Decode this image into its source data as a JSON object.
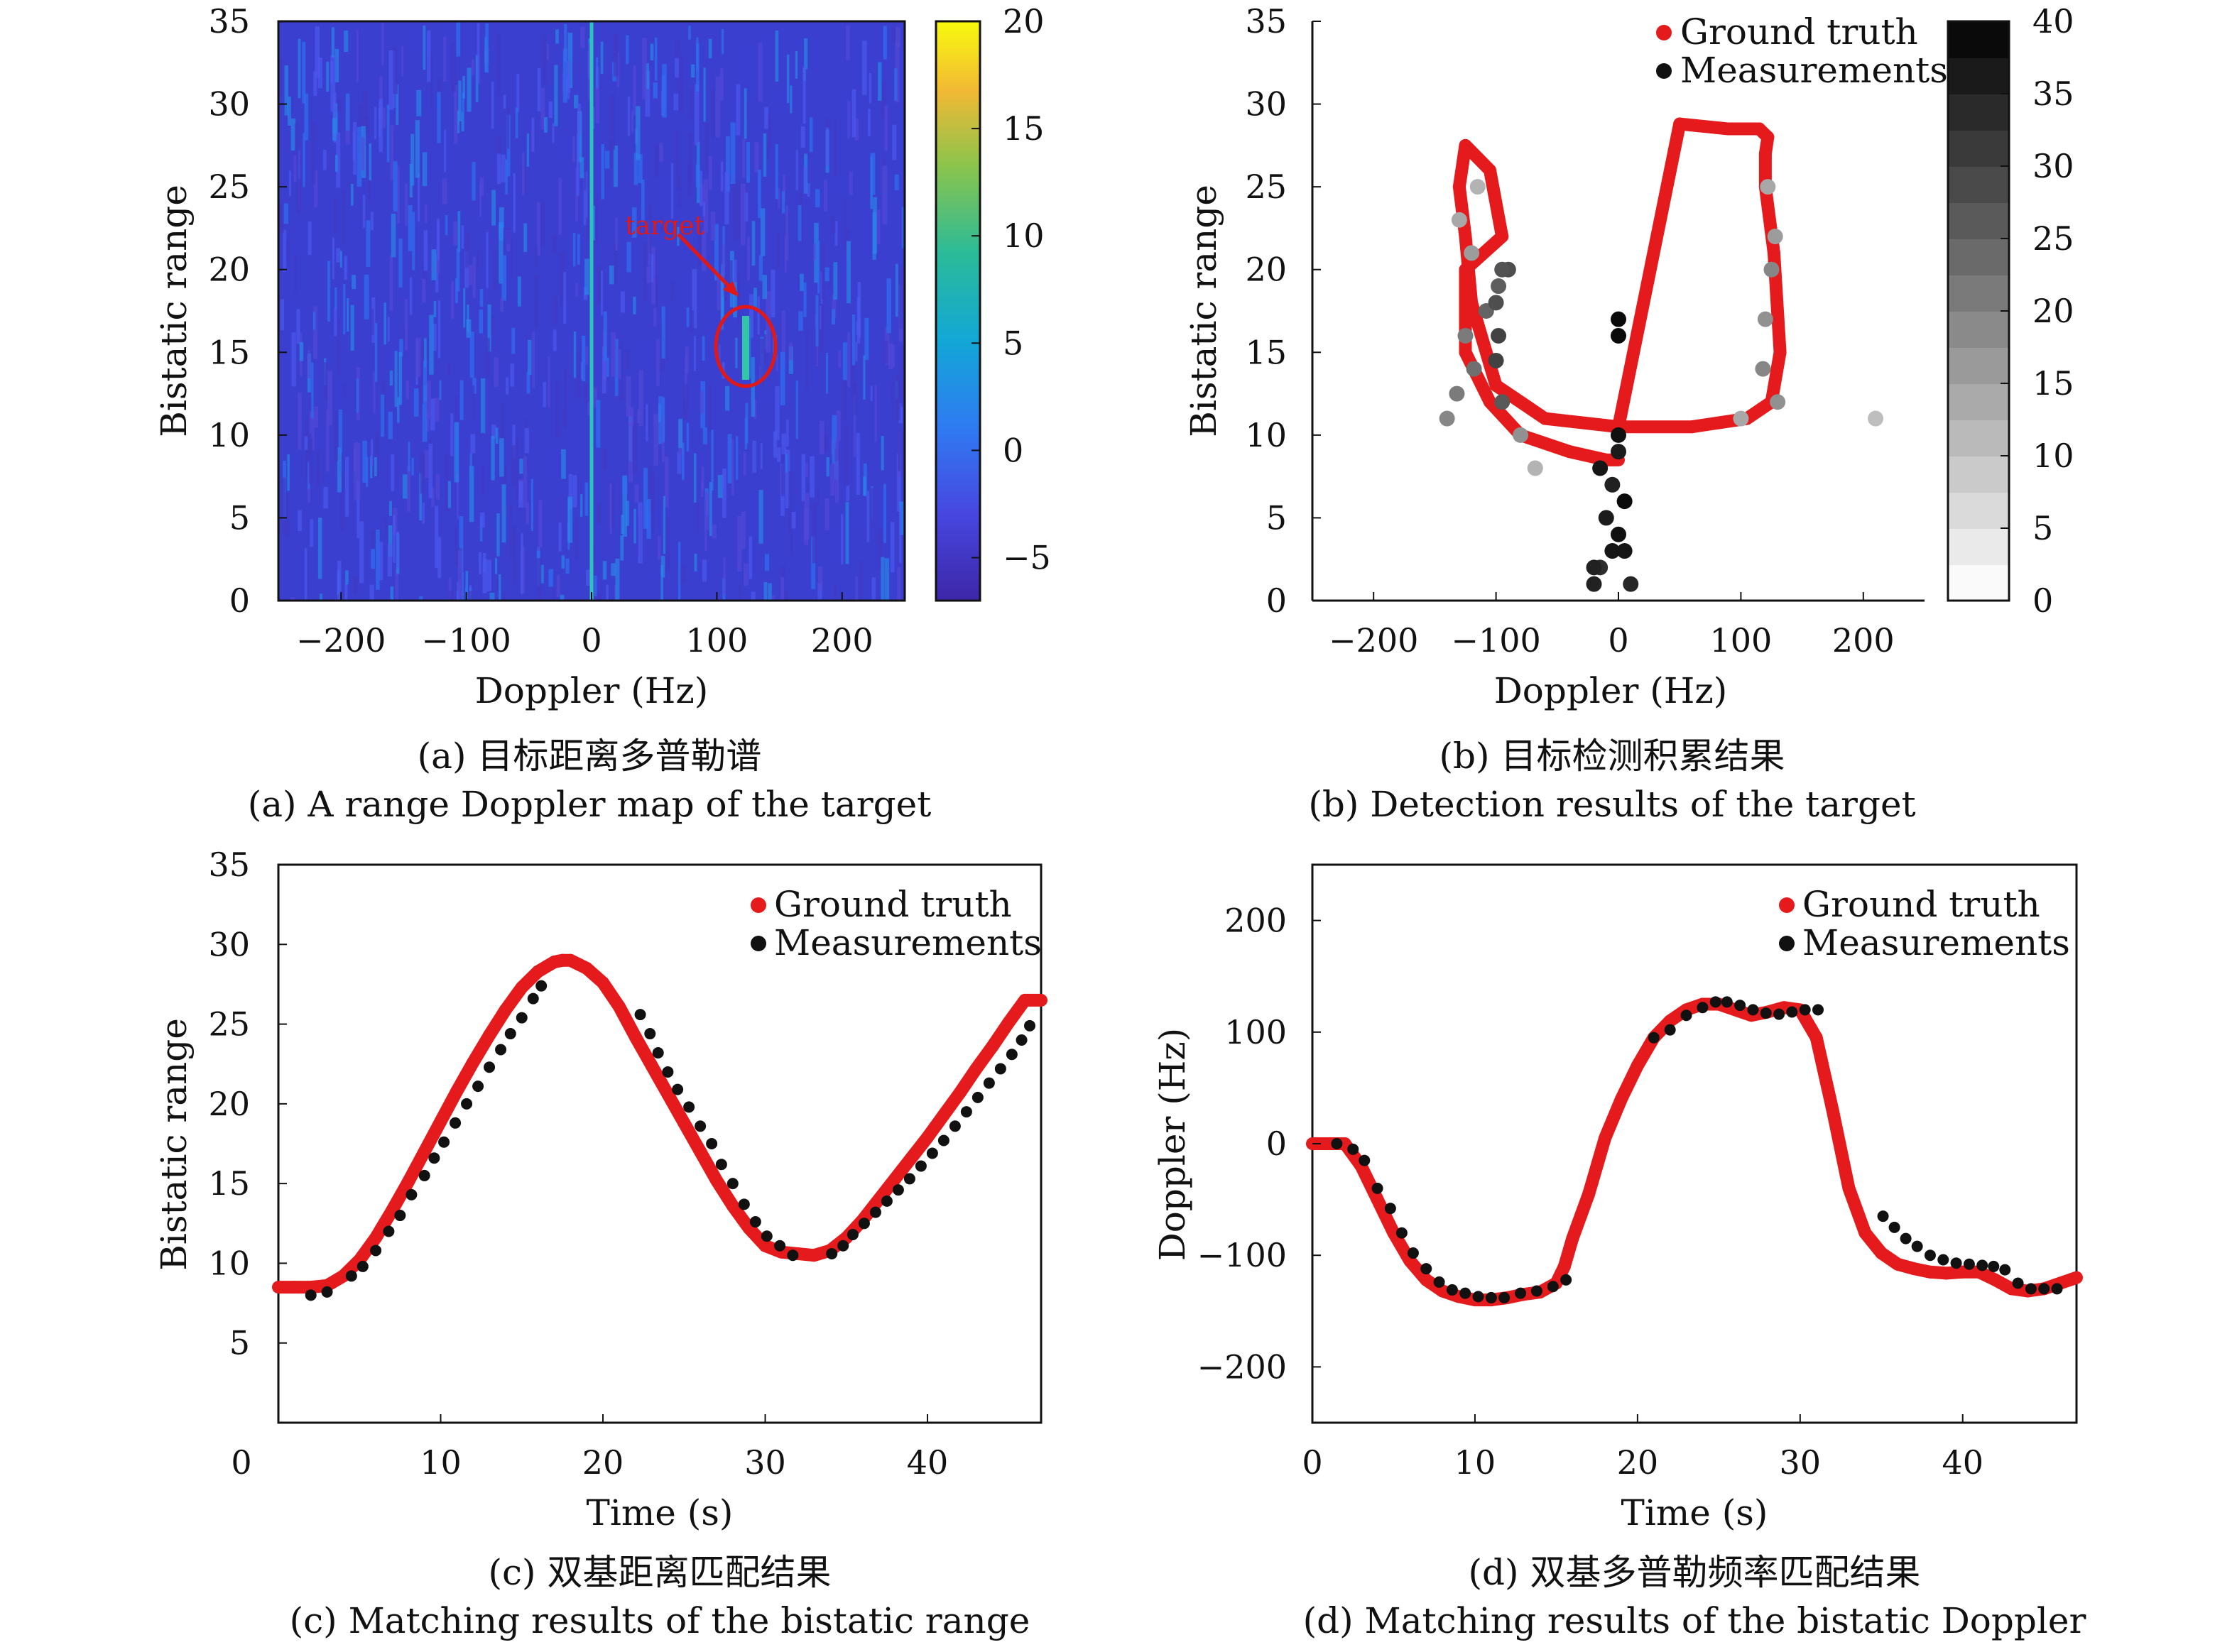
{
  "chart_data": [
    {
      "id": "a",
      "type": "heatmap",
      "caption_cn": "(a) 目标距离多普勒谱",
      "caption_en": "(a) A range Doppler map of the target",
      "xlabel": "Doppler (Hz)",
      "ylabel": "Bistatic range",
      "xlim": [
        -250,
        250
      ],
      "ylim": [
        0,
        35
      ],
      "xticks": [
        -200,
        -100,
        0,
        100,
        200
      ],
      "yticks": [
        0,
        5,
        10,
        15,
        20,
        25,
        30,
        35
      ],
      "colorbar": {
        "range": [
          -7,
          20
        ],
        "ticks": [
          -5,
          0,
          5,
          10,
          15,
          20
        ],
        "colormap": "parula"
      },
      "annotation": {
        "text": "target",
        "doppler": 123,
        "range": 15.5
      },
      "features": [
        {
          "name": "zero-Doppler clutter line",
          "doppler": 0
        },
        {
          "name": "target return",
          "doppler": 123,
          "range_min": 13.5,
          "range_max": 17
        }
      ]
    },
    {
      "id": "b",
      "type": "scatter",
      "caption_cn": "(b) 目标检测积累结果",
      "caption_en": "(b) Detection results of the target",
      "xlabel": "Doppler (Hz)",
      "ylabel": "Bistatic range",
      "xlim": [
        -250,
        250
      ],
      "ylim": [
        0,
        35
      ],
      "xticks": [
        -200,
        -100,
        0,
        100,
        200
      ],
      "yticks": [
        0,
        5,
        10,
        15,
        20,
        25,
        30,
        35
      ],
      "legend": {
        "placement": "top-right",
        "entries": [
          "Ground truth",
          "Measurements"
        ]
      },
      "colorbar": {
        "range": [
          0,
          40
        ],
        "ticks": [
          0,
          5,
          10,
          15,
          20,
          25,
          30,
          35,
          40
        ],
        "colormap": "gray-reversed"
      },
      "series": [
        {
          "name": "Ground truth",
          "x": [
            0,
            -10,
            -40,
            -80,
            -105,
            -125,
            -125,
            -95,
            -105,
            -125,
            -130,
            -125,
            -120,
            -100,
            -60,
            0,
            60,
            105,
            125,
            132,
            127,
            120,
            120,
            122,
            115,
            90,
            50,
            0
          ],
          "y": [
            8.5,
            8.5,
            9,
            10,
            12,
            15,
            20,
            22,
            26,
            27.5,
            25,
            22,
            18,
            13,
            11,
            10.5,
            10.5,
            11,
            12,
            15,
            21,
            25,
            27,
            28,
            28.5,
            28.5,
            28.8,
            10.5
          ]
        },
        {
          "name": "Measurements",
          "x": [
            -140,
            -132,
            -118,
            -125,
            -108,
            -98,
            -90,
            -80,
            -68,
            -95,
            -100,
            -120,
            -130,
            -115,
            -100,
            -95,
            -98,
            120,
            125,
            128,
            122,
            118,
            130,
            100,
            210,
            -20,
            -15,
            -5,
            0,
            -10,
            5,
            -5,
            -15,
            0,
            10,
            -20,
            5,
            0,
            0,
            0
          ],
          "y": [
            11,
            12.5,
            14,
            16,
            17.5,
            19,
            20,
            10,
            8,
            12,
            14.5,
            21,
            23,
            25,
            18,
            20,
            16,
            17,
            20,
            22,
            25,
            14,
            12,
            11,
            11,
            1,
            2,
            3,
            4,
            5,
            6,
            7,
            8,
            9,
            1,
            2,
            3,
            10,
            16,
            17
          ],
          "color_values": [
            18,
            20,
            22,
            20,
            24,
            25,
            28,
            16,
            10,
            26,
            30,
            14,
            12,
            10,
            28,
            27,
            30,
            16,
            18,
            14,
            12,
            18,
            16,
            12,
            8,
            36,
            34,
            38,
            39,
            37,
            40,
            36,
            38,
            37,
            35,
            36,
            38,
            39,
            40,
            40
          ]
        }
      ]
    },
    {
      "id": "c",
      "type": "scatter",
      "caption_cn": "(c) 双基距离匹配结果",
      "caption_en": "(c) Matching results of the bistatic range",
      "xlabel": "Time (s)",
      "ylabel": "Bistatic range",
      "xlim": [
        0,
        47
      ],
      "ylim": [
        0,
        35
      ],
      "xticks": [
        0,
        10,
        20,
        30,
        40
      ],
      "yticks": [
        5,
        10,
        15,
        20,
        25,
        30,
        35
      ],
      "legend": {
        "placement": "top-right",
        "entries": [
          "Ground truth",
          "Measurements"
        ]
      },
      "series": [
        {
          "name": "Ground truth",
          "x": [
            0,
            1,
            2,
            3,
            4,
            5,
            6,
            7,
            8,
            9,
            10,
            11,
            12,
            13,
            14,
            15,
            16,
            17,
            17.5,
            18,
            19,
            20,
            21,
            22,
            23,
            24,
            25,
            26,
            27,
            28,
            29,
            30,
            31,
            32,
            33,
            34,
            35,
            36,
            37,
            38,
            39,
            40,
            41,
            42,
            43,
            44,
            45,
            46,
            47
          ],
          "y": [
            8.5,
            8.5,
            8.5,
            8.6,
            9.2,
            10.2,
            11.6,
            13.3,
            15.1,
            17.0,
            18.9,
            20.8,
            22.6,
            24.3,
            25.9,
            27.3,
            28.3,
            28.9,
            29.0,
            29.0,
            28.5,
            27.6,
            26.1,
            24.2,
            22.4,
            20.6,
            18.8,
            17.0,
            15.2,
            13.6,
            12.2,
            11.1,
            10.7,
            10.6,
            10.5,
            10.8,
            11.6,
            12.7,
            14.0,
            15.3,
            16.6,
            17.9,
            19.3,
            20.7,
            22.2,
            23.6,
            25.1,
            26.5,
            26.5
          ]
        },
        {
          "name": "Measurements",
          "x": [
            2,
            3,
            4.5,
            5.2,
            6,
            6.8,
            7.5,
            8.2,
            9,
            9.6,
            10.2,
            10.9,
            11.6,
            12.3,
            13,
            13.7,
            14.3,
            15,
            15.7,
            16.2,
            22.3,
            22.9,
            23.4,
            24,
            24.6,
            25.3,
            26,
            26.7,
            27.3,
            28,
            28.7,
            29.4,
            30.1,
            30.9,
            31.7,
            34.1,
            34.8,
            35.4,
            36.1,
            36.8,
            37.5,
            38.2,
            38.9,
            39.6,
            40.3,
            41,
            41.7,
            42.4,
            43.1,
            43.8,
            44.5,
            45.2,
            45.8,
            46.3
          ],
          "y": [
            8.0,
            8.2,
            9.2,
            9.8,
            10.8,
            12.0,
            13.0,
            14.3,
            15.5,
            16.6,
            17.6,
            18.8,
            20.0,
            21.1,
            22.3,
            23.4,
            24.4,
            25.4,
            26.6,
            27.4,
            25.6,
            24.4,
            23.2,
            22.0,
            20.9,
            19.8,
            18.6,
            17.5,
            16.2,
            15.0,
            13.7,
            12.6,
            11.7,
            11.1,
            10.5,
            10.6,
            11.1,
            11.8,
            12.5,
            13.2,
            13.9,
            14.6,
            15.3,
            16.1,
            16.9,
            17.7,
            18.6,
            19.5,
            20.4,
            21.3,
            22.2,
            23.1,
            24.0,
            24.9
          ]
        }
      ]
    },
    {
      "id": "d",
      "type": "scatter",
      "caption_cn": "(d) 双基多普勒频率匹配结果",
      "caption_en": "(d) Matching results of the bistatic Doppler",
      "xlabel": "Time (s)",
      "ylabel": "Doppler (Hz)",
      "xlim": [
        0,
        47
      ],
      "ylim": [
        -250,
        250
      ],
      "xticks": [
        0,
        10,
        20,
        30,
        40
      ],
      "yticks": [
        -200,
        -100,
        0,
        100,
        200
      ],
      "legend": {
        "placement": "top-right",
        "entries": [
          "Ground truth",
          "Measurements"
        ]
      },
      "series": [
        {
          "name": "Ground truth",
          "x": [
            0,
            1,
            2,
            3,
            4,
            5,
            6,
            7,
            8,
            9,
            10,
            11,
            12,
            13,
            14,
            15,
            15.5,
            16,
            17,
            18,
            19,
            20,
            21,
            22,
            23,
            24,
            25,
            26,
            27,
            28,
            29,
            30,
            31,
            32,
            33,
            34,
            35,
            36,
            37,
            38,
            39,
            40,
            41,
            42,
            43,
            44,
            45,
            46,
            47
          ],
          "y": [
            0,
            0,
            0,
            -20,
            -50,
            -80,
            -105,
            -122,
            -132,
            -137,
            -140,
            -140,
            -138,
            -135,
            -133,
            -125,
            -110,
            -85,
            -45,
            5,
            40,
            70,
            95,
            110,
            120,
            125,
            125,
            120,
            115,
            118,
            122,
            120,
            95,
            30,
            -40,
            -80,
            -98,
            -108,
            -112,
            -115,
            -116,
            -115,
            -115,
            -122,
            -130,
            -132,
            -130,
            -125,
            -120
          ]
        },
        {
          "name": "Measurements",
          "x": [
            1.5,
            2.5,
            3.2,
            4,
            4.8,
            5.5,
            6.2,
            7,
            7.8,
            8.6,
            9.4,
            10.2,
            11,
            11.8,
            12.8,
            13.8,
            14.8,
            15.6,
            21,
            22,
            23,
            24,
            24.8,
            25.5,
            26.3,
            27.1,
            27.9,
            28.7,
            29.5,
            30.3,
            31.1,
            35.1,
            35.8,
            36.5,
            37.2,
            38,
            38.8,
            39.6,
            40.4,
            41.2,
            41.9,
            42.6,
            43.4,
            44.2,
            45,
            45.8
          ],
          "y": [
            0,
            -5,
            -15,
            -40,
            -58,
            -80,
            -98,
            -112,
            -124,
            -131,
            -134,
            -137,
            -138,
            -138,
            -134,
            -132,
            -128,
            -122,
            95,
            102,
            115,
            122,
            127,
            127,
            124,
            120,
            117,
            116,
            118,
            120,
            120,
            -65,
            -75,
            -85,
            -92,
            -100,
            -104,
            -107,
            -108,
            -109,
            -110,
            -113,
            -125,
            -130,
            -130,
            -130
          ]
        }
      ]
    }
  ]
}
